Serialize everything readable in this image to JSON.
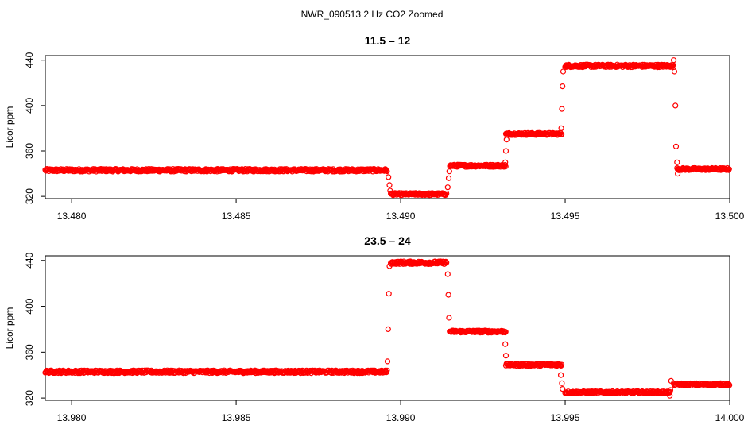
{
  "suptitle": "NWR_090513  2 Hz CO2 Zoomed",
  "colors": {
    "points": "#ff0000",
    "axes": "#000000",
    "background": "#ffffff"
  },
  "chart_data": [
    {
      "type": "scatter",
      "title": "11.5 – 12",
      "xlabel": "",
      "ylabel": "Licor ppm",
      "xlim": [
        13.4792,
        13.5
      ],
      "ylim": [
        318,
        444
      ],
      "xticks": [
        13.48,
        13.485,
        13.49,
        13.495,
        13.5
      ],
      "xtick_labels": [
        "13.480",
        "13.485",
        "13.490",
        "13.495",
        "13.500"
      ],
      "yticks": [
        320,
        360,
        400,
        440
      ],
      "ytick_labels": [
        "320",
        "360",
        "400",
        "440"
      ],
      "segments": [
        {
          "x": [
            13.4792,
            13.4896
          ],
          "y": 343,
          "spread": 1.2
        },
        {
          "x": [
            13.4897,
            13.4914
          ],
          "y": 322,
          "spread": 1.0
        },
        {
          "x": [
            13.4915,
            13.4932
          ],
          "y": 347,
          "spread": 1.0
        },
        {
          "x": [
            13.4932,
            13.4949
          ],
          "y": 375,
          "spread": 1.0
        },
        {
          "x": [
            13.495,
            13.4983
          ],
          "y": 435,
          "spread": 1.2
        },
        {
          "x": [
            13.4984,
            13.5
          ],
          "y": 344,
          "spread": 1.0
        }
      ],
      "transitions": [
        {
          "x": 13.48963,
          "y": 337
        },
        {
          "x": 13.48966,
          "y": 330
        },
        {
          "x": 13.48968,
          "y": 325
        },
        {
          "x": 13.49143,
          "y": 328
        },
        {
          "x": 13.49146,
          "y": 336
        },
        {
          "x": 13.49148,
          "y": 342
        },
        {
          "x": 13.49318,
          "y": 350
        },
        {
          "x": 13.4932,
          "y": 360
        },
        {
          "x": 13.49322,
          "y": 370
        },
        {
          "x": 13.49488,
          "y": 380
        },
        {
          "x": 13.4949,
          "y": 397
        },
        {
          "x": 13.49492,
          "y": 417
        },
        {
          "x": 13.49494,
          "y": 430
        },
        {
          "x": 13.4983,
          "y": 440
        },
        {
          "x": 13.49832,
          "y": 430
        },
        {
          "x": 13.49835,
          "y": 400
        },
        {
          "x": 13.49837,
          "y": 364
        },
        {
          "x": 13.4984,
          "y": 350
        },
        {
          "x": 13.49842,
          "y": 340
        }
      ]
    },
    {
      "type": "scatter",
      "title": "23.5 – 24",
      "xlabel": "",
      "ylabel": "Licor ppm",
      "xlim": [
        13.9792,
        14.0
      ],
      "ylim": [
        318,
        444
      ],
      "xticks": [
        13.98,
        13.985,
        13.99,
        13.995,
        14.0
      ],
      "xtick_labels": [
        "13.980",
        "13.985",
        "13.990",
        "13.995",
        "14.000"
      ],
      "yticks": [
        320,
        360,
        400,
        440
      ],
      "ytick_labels": [
        "320",
        "360",
        "400",
        "440"
      ],
      "segments": [
        {
          "x": [
            13.9792,
            13.9896
          ],
          "y": 343,
          "spread": 1.2
        },
        {
          "x": [
            13.9897,
            13.9914
          ],
          "y": 438,
          "spread": 1.2
        },
        {
          "x": [
            13.9915,
            13.9932
          ],
          "y": 378,
          "spread": 1.0
        },
        {
          "x": [
            13.9932,
            13.9949
          ],
          "y": 349,
          "spread": 1.0
        },
        {
          "x": [
            13.995,
            13.9982
          ],
          "y": 325,
          "spread": 1.0
        },
        {
          "x": [
            13.9983,
            14.0
          ],
          "y": 332,
          "spread": 1.0
        }
      ],
      "transitions": [
        {
          "x": 13.9896,
          "y": 352
        },
        {
          "x": 13.98962,
          "y": 380
        },
        {
          "x": 13.98964,
          "y": 411
        },
        {
          "x": 13.98966,
          "y": 435
        },
        {
          "x": 13.99143,
          "y": 428
        },
        {
          "x": 13.99145,
          "y": 410
        },
        {
          "x": 13.99147,
          "y": 390
        },
        {
          "x": 13.99149,
          "y": 378
        },
        {
          "x": 13.99318,
          "y": 367
        },
        {
          "x": 13.9932,
          "y": 357
        },
        {
          "x": 13.99322,
          "y": 350
        },
        {
          "x": 13.99487,
          "y": 340
        },
        {
          "x": 13.9949,
          "y": 333
        },
        {
          "x": 13.99492,
          "y": 328
        },
        {
          "x": 13.99818,
          "y": 322
        },
        {
          "x": 13.9982,
          "y": 327
        },
        {
          "x": 13.99822,
          "y": 335
        }
      ]
    }
  ]
}
